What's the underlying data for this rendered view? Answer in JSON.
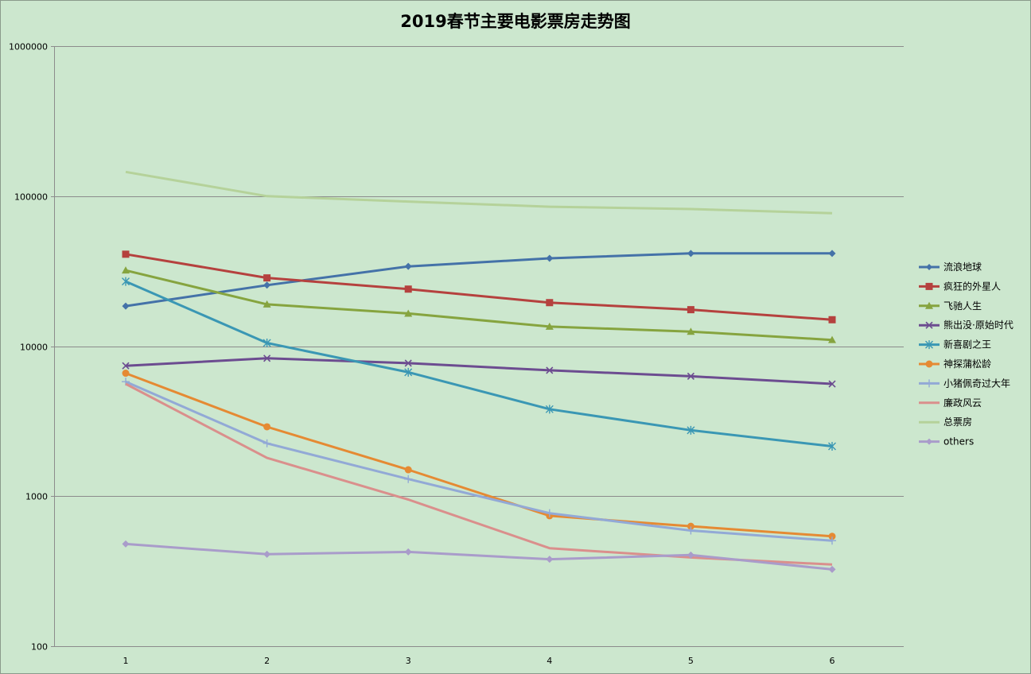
{
  "chart_data": {
    "type": "line",
    "title": "2019春节主要电影票房走势图",
    "xlabel": "",
    "ylabel": "",
    "x": [
      1,
      2,
      3,
      4,
      5,
      6
    ],
    "x_tick_labels": [
      "1",
      "2",
      "3",
      "4",
      "5",
      "6"
    ],
    "yscale": "log",
    "ylim": [
      100,
      1000000
    ],
    "y_tick_labels": [
      "100",
      "1000",
      "10000",
      "100000",
      "1000000"
    ],
    "grid": "horizontal",
    "legend_position": "right",
    "series": [
      {
        "name": "流浪地球",
        "color": "#4472a8",
        "marker": "diamond",
        "values": [
          18500,
          25500,
          34000,
          38500,
          41500,
          41500
        ]
      },
      {
        "name": "疯狂的外星人",
        "color": "#b5413e",
        "marker": "square",
        "values": [
          41000,
          28500,
          24000,
          19500,
          17500,
          15000
        ]
      },
      {
        "name": "飞驰人生",
        "color": "#86a43f",
        "marker": "triangle",
        "values": [
          32000,
          19000,
          16500,
          13500,
          12500,
          11000
        ]
      },
      {
        "name": "熊出没·原始时代",
        "color": "#6c4c90",
        "marker": "x",
        "values": [
          7400,
          8300,
          7700,
          6900,
          6300,
          5600
        ]
      },
      {
        "name": "新喜剧之王",
        "color": "#3a97b4",
        "marker": "star",
        "values": [
          27000,
          10500,
          6700,
          3800,
          2750,
          2150
        ]
      },
      {
        "name": "神探蒲松龄",
        "color": "#e58a33",
        "marker": "circle",
        "values": [
          6600,
          2900,
          1500,
          740,
          630,
          540
        ]
      },
      {
        "name": "小猪佩奇过大年",
        "color": "#92a9d6",
        "marker": "plus",
        "values": [
          5800,
          2250,
          1300,
          770,
          590,
          505
        ]
      },
      {
        "name": "廉政风云",
        "color": "#da8f8c",
        "marker": "none",
        "values": [
          5600,
          1800,
          950,
          450,
          390,
          350
        ]
      },
      {
        "name": "总票房",
        "color": "#b5d29a",
        "marker": "none",
        "values": [
          145000,
          100000,
          92000,
          85000,
          82000,
          77000
        ]
      },
      {
        "name": "others",
        "color": "#a99cca",
        "marker": "diamond",
        "values": [
          480,
          410,
          425,
          380,
          405,
          325
        ]
      }
    ]
  }
}
